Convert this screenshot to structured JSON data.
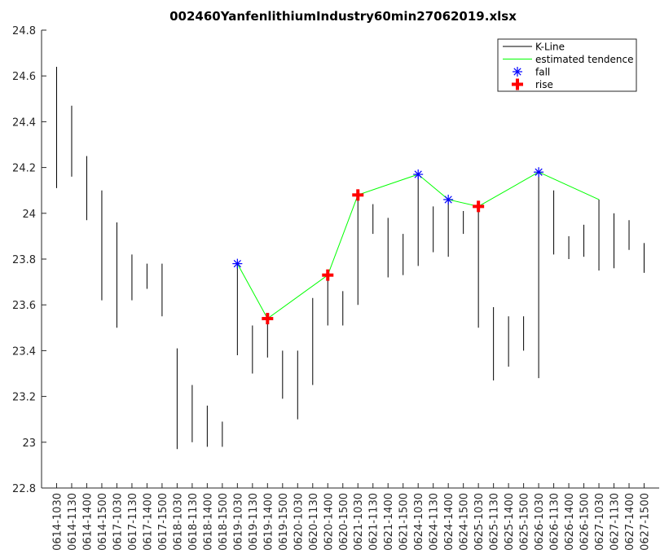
{
  "chart_data": {
    "type": "kline",
    "title": "002460YanfenlithiumIndustry60min27062019.xlsx",
    "categories": [
      "0614-1030",
      "0614-1130",
      "0614-1400",
      "0614-1500",
      "0617-1030",
      "0617-1130",
      "0617-1400",
      "0617-1500",
      "0618-1030",
      "0618-1130",
      "0618-1400",
      "0618-1500",
      "0619-1030",
      "0619-1130",
      "0619-1400",
      "0619-1500",
      "0620-1030",
      "0620-1130",
      "0620-1400",
      "0620-1500",
      "0621-1030",
      "0621-1130",
      "0621-1400",
      "0621-1500",
      "0624-1030",
      "0624-1130",
      "0624-1400",
      "0624-1500",
      "0625-1030",
      "0625-1130",
      "0625-1400",
      "0625-1500",
      "0626-1030",
      "0626-1130",
      "0626-1400",
      "0626-1500",
      "0627-1030",
      "0627-1130",
      "0627-1400",
      "0627-1500"
    ],
    "kline": {
      "name": "K-Line",
      "color": "#000000",
      "high": [
        24.64,
        24.47,
        24.25,
        24.1,
        23.96,
        23.82,
        23.78,
        23.78,
        23.41,
        23.25,
        23.16,
        23.09,
        23.78,
        23.51,
        23.55,
        23.4,
        23.4,
        23.63,
        23.73,
        23.66,
        24.08,
        24.04,
        23.98,
        23.91,
        24.17,
        24.03,
        24.06,
        24.01,
        24.03,
        23.59,
        23.55,
        23.55,
        24.18,
        24.1,
        23.9,
        23.95,
        24.06,
        24.0,
        23.97,
        23.87
      ],
      "low": [
        24.11,
        24.16,
        23.97,
        23.62,
        23.5,
        23.62,
        23.67,
        23.55,
        22.97,
        23.0,
        22.98,
        22.98,
        23.38,
        23.3,
        23.37,
        23.19,
        23.1,
        23.25,
        23.51,
        23.51,
        23.6,
        23.91,
        23.72,
        23.73,
        23.77,
        23.83,
        23.81,
        23.91,
        23.5,
        23.27,
        23.33,
        23.4,
        23.28,
        23.82,
        23.8,
        23.81,
        23.75,
        23.76,
        23.84,
        23.74
      ]
    },
    "series": [
      {
        "name": "estimated tendence",
        "color": "#00ff00",
        "marker": "line",
        "x": [
          "0619-1030",
          "0619-1400",
          "0620-1400",
          "0621-1030",
          "0624-1030",
          "0624-1400",
          "0625-1030",
          "0626-1030",
          "0627-1030"
        ],
        "values": [
          23.78,
          23.54,
          23.73,
          24.08,
          24.17,
          24.06,
          24.03,
          24.18,
          24.06
        ]
      },
      {
        "name": "fall",
        "color": "#0000ff",
        "marker": "asterisk",
        "x": [
          "0619-1030",
          "0624-1030",
          "0624-1400",
          "0626-1030"
        ],
        "values": [
          23.78,
          24.17,
          24.06,
          24.18
        ]
      },
      {
        "name": "rise",
        "color": "#ff0000",
        "marker": "plus",
        "x": [
          "0619-1400",
          "0620-1400",
          "0621-1030",
          "0625-1030"
        ],
        "values": [
          23.54,
          23.73,
          24.08,
          24.03
        ]
      }
    ],
    "ylim": [
      22.8,
      24.8
    ],
    "yticks": [
      22.8,
      23,
      23.2,
      23.4,
      23.6,
      23.8,
      24,
      24.2,
      24.4,
      24.6,
      24.8
    ],
    "legend": "upper-right"
  }
}
